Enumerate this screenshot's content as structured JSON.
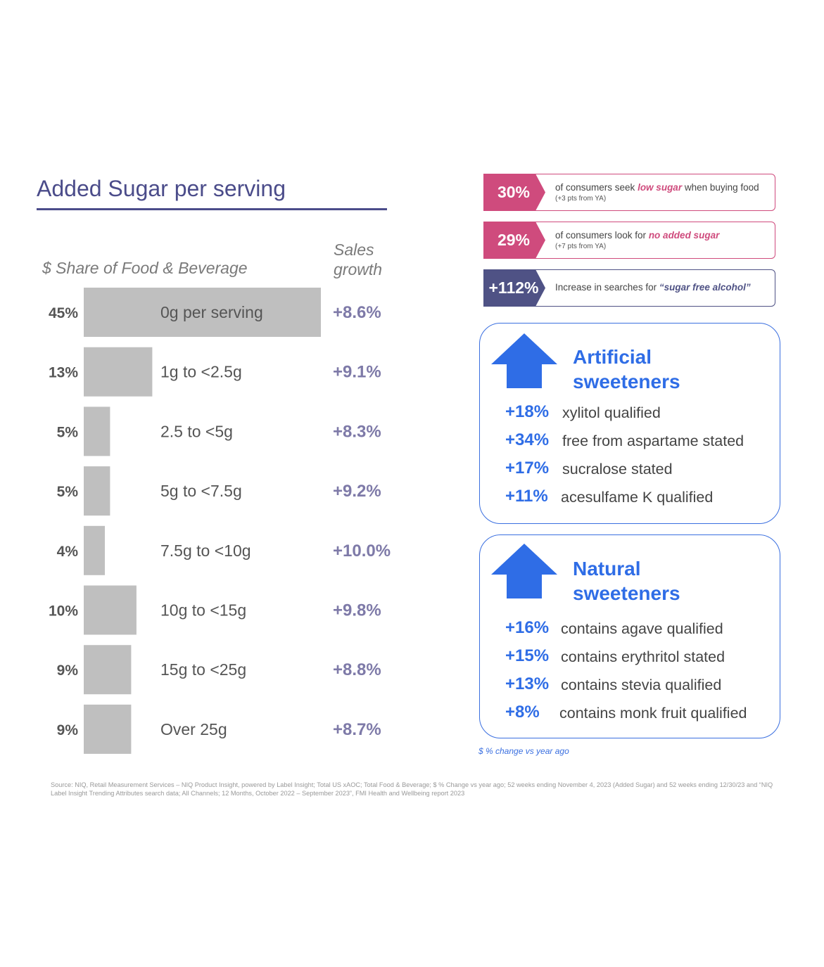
{
  "title": "Added Sugar per serving",
  "left_headers": {
    "share": "$ Share of Food & Beverage",
    "growth_line1": "Sales",
    "growth_line2": "growth"
  },
  "chart_data": {
    "type": "bar",
    "orientation": "horizontal",
    "categories": [
      "0g per serving",
      "1g to <2.5g",
      "2.5 to <5g",
      "5g to <7.5g",
      "7.5g to <10g",
      "10g to <15g",
      "15g to <25g",
      "Over 25g"
    ],
    "series": [
      {
        "name": "$ Share of Food & Beverage",
        "values": [
          45,
          13,
          5,
          5,
          4,
          10,
          9,
          9
        ]
      },
      {
        "name": "Sales growth",
        "values": [
          8.6,
          9.1,
          8.3,
          9.2,
          10.0,
          9.8,
          8.8,
          8.7
        ]
      }
    ],
    "share_labels": [
      "45%",
      "13%",
      "5%",
      "5%",
      "4%",
      "10%",
      "9%",
      "9%"
    ],
    "growth_labels": [
      "+8.6%",
      "+9.1%",
      "+8.3%",
      "+9.2%",
      "+10.0%",
      "+9.8%",
      "+8.8%",
      "+8.7%"
    ],
    "xlim": [
      0,
      45
    ],
    "grid": false,
    "colors": {
      "bar": "#bfbfbf",
      "growth": "#7e7aa8"
    }
  },
  "callouts": [
    {
      "pct": "30%",
      "text_pre": "of consumers seek ",
      "text_em": "low sugar",
      "text_post": " when buying food",
      "sub": "(+3 pts from YA)",
      "color": "#cf4b7d"
    },
    {
      "pct": "29%",
      "text_pre": "of consumers look for ",
      "text_em": "no added sugar",
      "text_post": "",
      "sub": "(+7 pts from YA)",
      "color": "#cf4b7d"
    },
    {
      "pct": "+112%",
      "text_pre": "Increase in searches for ",
      "text_em": "“sugar free alcohol”",
      "text_post": "",
      "sub": "",
      "color": "#4f5285"
    }
  ],
  "artificial": {
    "title_line1": "Artificial",
    "title_line2": "sweeteners",
    "icon": "up-arrow-icon",
    "items": [
      {
        "pct": "+18%",
        "label": "xylitol qualified"
      },
      {
        "pct": "+34%",
        "label": "free from aspartame stated"
      },
      {
        "pct": "+17%",
        "label": "sucralose stated"
      },
      {
        "pct": "+11%",
        "label": "acesulfame K qualified"
      }
    ]
  },
  "natural": {
    "title_line1": "Natural",
    "title_line2": "sweeteners",
    "icon": "up-arrow-icon",
    "items": [
      {
        "pct": "+16%",
        "label": "contains agave qualified"
      },
      {
        "pct": "+15%",
        "label": "contains erythritol stated"
      },
      {
        "pct": "+13%",
        "label": "contains stevia qualified"
      },
      {
        "pct": "+8%",
        "label": "contains monk fruit qualified"
      }
    ]
  },
  "note": "$ % change vs year ago",
  "source": "Source: NIQ, Retail Measurement Services – NIQ Product Insight, powered by Label Insight; Total US xAOC; Total Food & Beverage; $ % Change vs year ago; 52 weeks ending November 4, 2023 (Added Sugar) and 52 weeks ending 12/30/23 and “NIQ Label Insight Trending Attributes search data; All Channels; 12 Months, October 2022 – September 2023”, FMI Health and Wellbeing report 2023",
  "colors": {
    "title": "#4b4c8a",
    "pink": "#cf4b7d",
    "navy": "#4f5285",
    "blue": "#2f6de6"
  }
}
